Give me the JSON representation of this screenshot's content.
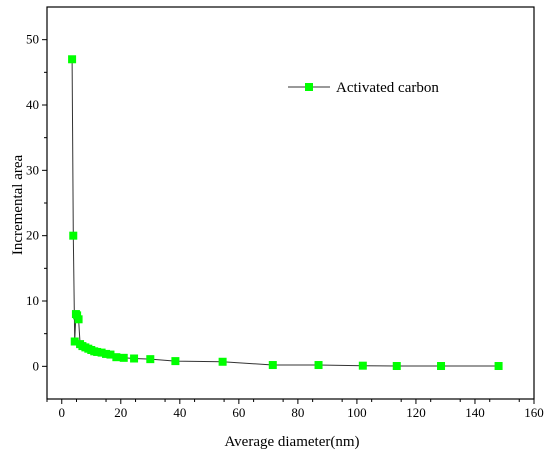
{
  "chart_data": {
    "type": "line",
    "title": "",
    "xlabel": "Average diameter(nm)",
    "ylabel": "Incremental area",
    "xlim": [
      -5,
      160
    ],
    "ylim": [
      -5,
      55
    ],
    "xticks": [
      0,
      20,
      40,
      60,
      80,
      100,
      120,
      140,
      160
    ],
    "yticks": [
      0,
      10,
      20,
      30,
      40,
      50
    ],
    "grid": false,
    "legend": "top-right",
    "series": [
      {
        "name": "Activated carbon",
        "color": "#00ff00",
        "marker": "square",
        "x": [
          3.5,
          3.9,
          4.4,
          4.8,
          5.2,
          5.7,
          6.2,
          7.0,
          8.0,
          9.0,
          10.0,
          11.0,
          12.0,
          13.5,
          15.0,
          16.5,
          18.5,
          21.0,
          24.5,
          30.0,
          38.5,
          54.5,
          71.5,
          87.0,
          102.0,
          113.5,
          128.5,
          148.0
        ],
        "y": [
          47.0,
          20.0,
          3.8,
          8.0,
          7.8,
          7.2,
          3.4,
          3.1,
          2.9,
          2.7,
          2.5,
          2.3,
          2.2,
          2.1,
          1.9,
          1.8,
          1.4,
          1.3,
          1.2,
          1.1,
          0.8,
          0.7,
          0.2,
          0.2,
          0.1,
          0.05,
          0.05,
          0.05
        ]
      }
    ]
  }
}
